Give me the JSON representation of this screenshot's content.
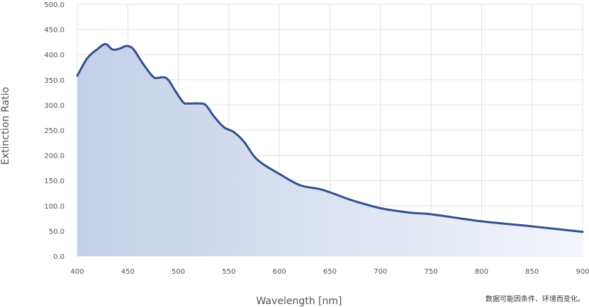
{
  "note": "数据可能因条件、环境而变化。",
  "chart_data": {
    "type": "area",
    "title": "",
    "xlabel": "Wavelength [nm]",
    "ylabel": "Extinction Ratio",
    "xlim": [
      400,
      900
    ],
    "ylim": [
      0,
      500
    ],
    "x_ticks": [
      "400",
      "450",
      "500",
      "550",
      "600",
      "650",
      "700",
      "750",
      "800",
      "850",
      "900"
    ],
    "y_ticks": [
      "0.0",
      "50.0",
      "100.0",
      "150.0",
      "200.0",
      "250.0",
      "300.0",
      "350.0",
      "400.0",
      "450.0",
      "500.0"
    ],
    "grid": true,
    "legend": "none",
    "colors": {
      "line": "#34508f",
      "fill_start": "#c4d0e8",
      "fill_end": "#f3f5fb",
      "grid": "#e2e2e2"
    },
    "series": [
      {
        "x": [
          400,
          410,
          420,
          428,
          435,
          442,
          448,
          453,
          457,
          465,
          475,
          480,
          485,
          490,
          497,
          505,
          510,
          520,
          527,
          535,
          545,
          555,
          565,
          575,
          585,
          600,
          620,
          640,
          655,
          670,
          700,
          730,
          750,
          800,
          850,
          900
        ],
        "y": [
          358,
          393,
          411,
          421,
          410,
          412,
          417,
          415,
          407,
          382,
          356,
          354,
          355,
          350,
          328,
          305,
          303,
          303,
          300,
          278,
          256,
          246,
          227,
          198,
          181,
          163,
          141,
          133,
          123,
          112,
          95,
          86,
          83,
          69,
          59,
          48
        ]
      }
    ]
  }
}
